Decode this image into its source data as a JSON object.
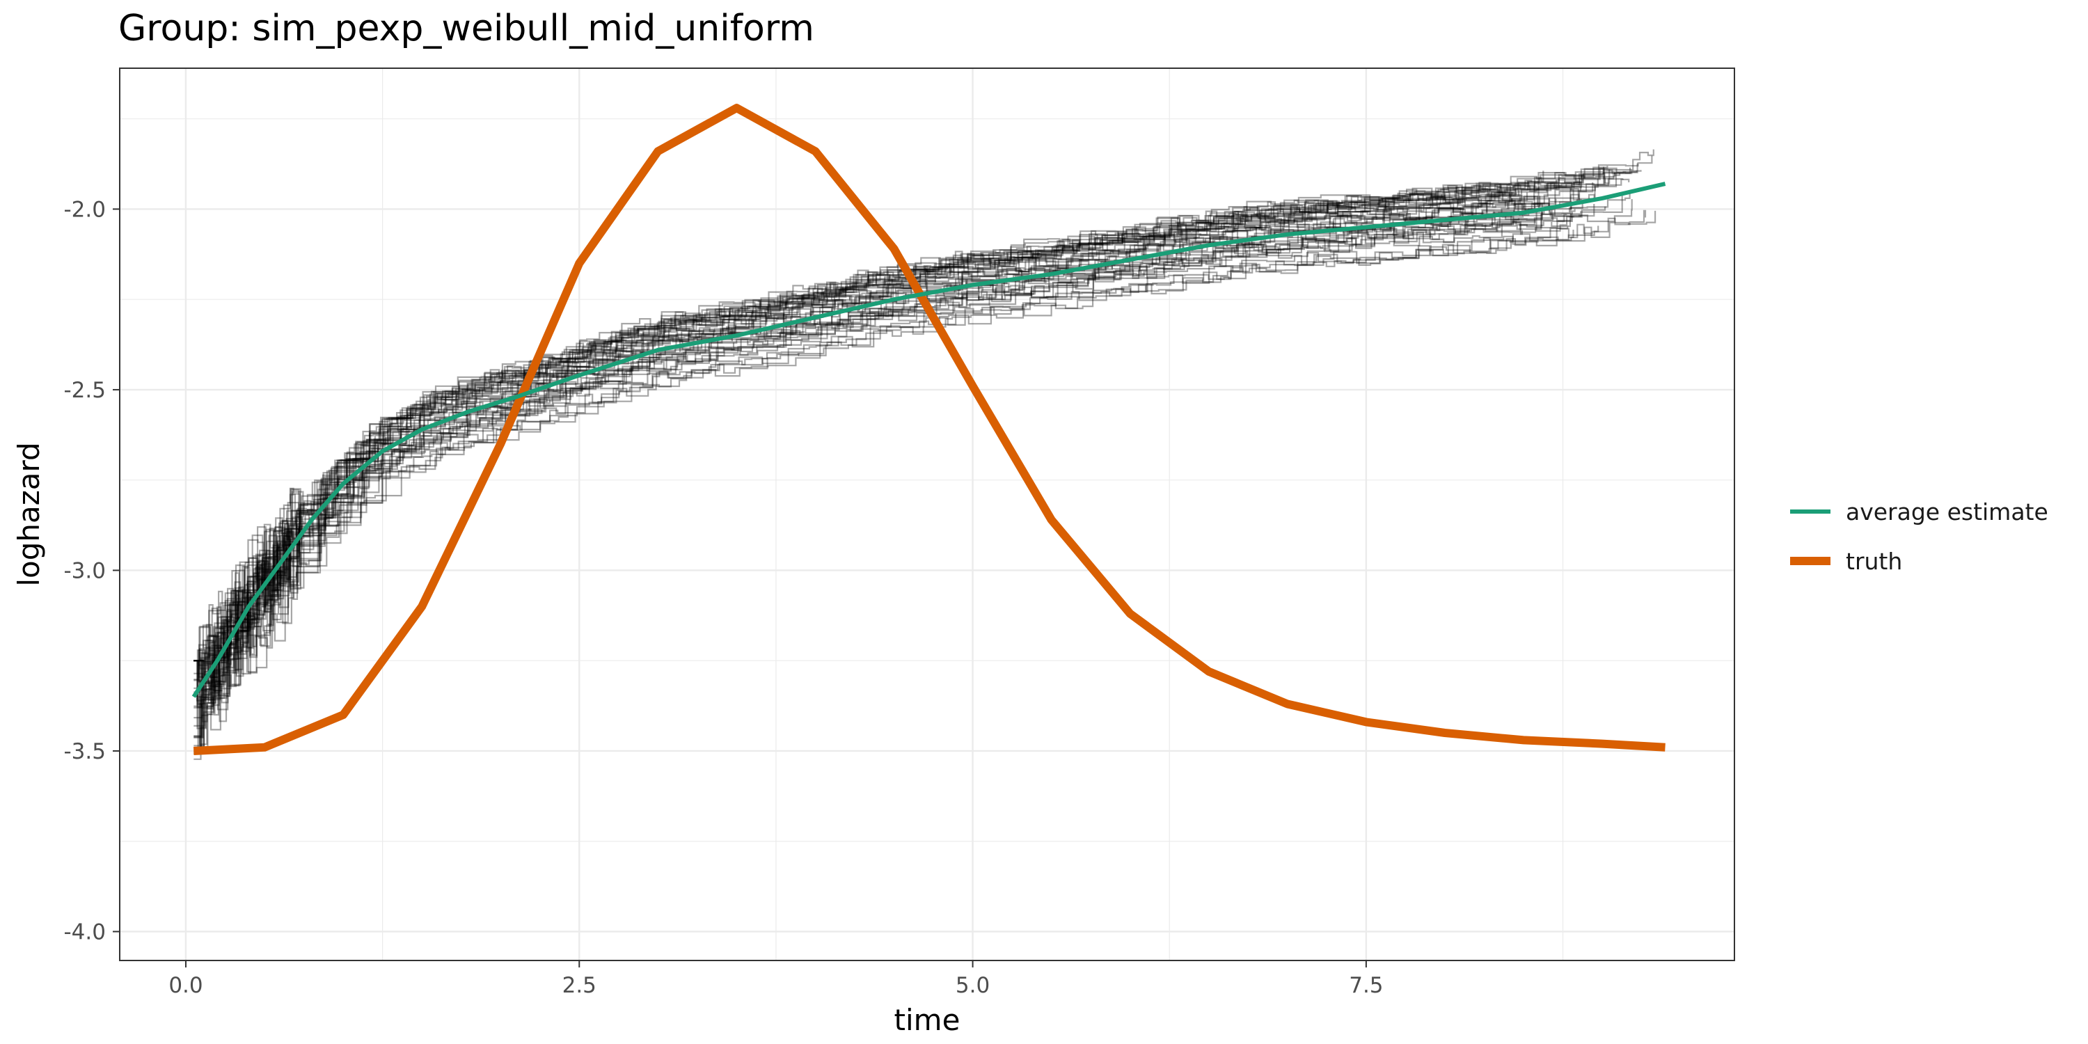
{
  "chart_data": {
    "type": "line",
    "title": "Group: sim_pexp_weibull_mid_uniform",
    "xlabel": "time",
    "ylabel": "loghazard",
    "xlim": [
      -0.42,
      9.84
    ],
    "ylim": [
      -4.08,
      -1.61
    ],
    "x_ticks": [
      0.0,
      2.5,
      5.0,
      7.5
    ],
    "x_tick_labels": [
      "0.0",
      "2.5",
      "5.0",
      "7.5"
    ],
    "y_ticks": [
      -4.0,
      -3.5,
      -3.0,
      -2.5,
      -2.0
    ],
    "y_tick_labels": [
      "-4.0",
      "-3.5",
      "-3.0",
      "-2.5",
      "-2.0"
    ],
    "grid": true,
    "legend_position": "right",
    "series": [
      {
        "name": "average estimate",
        "color": "#1b9e77",
        "x": [
          0.05,
          0.2,
          0.4,
          0.6,
          0.8,
          1.0,
          1.25,
          1.5,
          1.8,
          2.1,
          2.5,
          3.0,
          3.5,
          4.0,
          4.5,
          5.0,
          5.5,
          6.0,
          6.5,
          7.0,
          7.5,
          8.0,
          8.5,
          9.0,
          9.4
        ],
        "y": [
          -3.35,
          -3.25,
          -3.1,
          -2.98,
          -2.86,
          -2.76,
          -2.67,
          -2.61,
          -2.56,
          -2.52,
          -2.46,
          -2.39,
          -2.35,
          -2.3,
          -2.25,
          -2.21,
          -2.18,
          -2.14,
          -2.1,
          -2.07,
          -2.05,
          -2.03,
          -2.01,
          -1.97,
          -1.93
        ]
      },
      {
        "name": "truth",
        "color": "#d95f02",
        "x": [
          0.05,
          0.5,
          1.0,
          1.5,
          2.0,
          2.25,
          2.5,
          3.0,
          3.5,
          4.0,
          4.5,
          4.75,
          5.0,
          5.5,
          6.0,
          6.5,
          7.0,
          7.5,
          8.0,
          8.5,
          9.0,
          9.4
        ],
        "y": [
          -3.5,
          -3.49,
          -3.4,
          -3.1,
          -2.65,
          -2.4,
          -2.15,
          -1.84,
          -1.72,
          -1.84,
          -2.11,
          -2.3,
          -2.49,
          -2.86,
          -3.12,
          -3.28,
          -3.37,
          -3.42,
          -3.45,
          -3.47,
          -3.48,
          -3.49
        ]
      }
    ],
    "replicates": {
      "count": 50,
      "color": "#000000",
      "opacity": 0.35,
      "description_note": ""
    }
  }
}
